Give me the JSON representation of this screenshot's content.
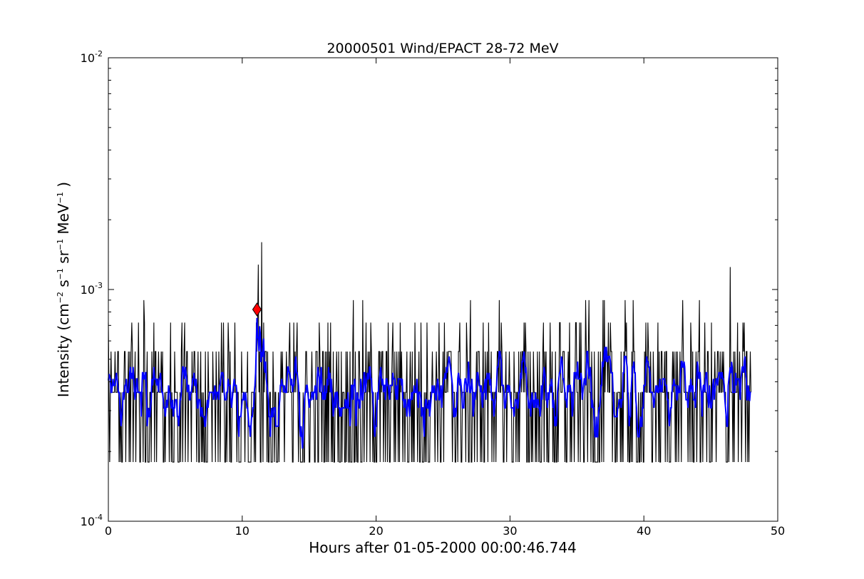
{
  "chart_data": {
    "type": "line",
    "title": "20000501 Wind/EPACT 28-72 MeV",
    "xlabel": "Hours after 01-05-2000 00:00:46.744",
    "ylabel": "Intensity (cm⁻² s⁻¹ sr⁻¹ MeV⁻¹)",
    "ylabel_parts": {
      "prefix": "Intensity (cm",
      "e1": "−2",
      "s": " s",
      "e2": "−1",
      "sr": " sr",
      "e3": "−1",
      "mev": " MeV",
      "e4": "−1",
      "suffix": " )"
    },
    "xlim": [
      0,
      50
    ],
    "ylim": [
      0.0001,
      0.01
    ],
    "yscale": "log",
    "grid": false,
    "x_ticks": [
      "0",
      "10",
      "20",
      "30",
      "40",
      "50"
    ],
    "y_ticks": [
      {
        "base": "10",
        "exp": "-4",
        "value": 0.0001
      },
      {
        "base": "10",
        "exp": "-3",
        "value": 0.001
      },
      {
        "base": "10",
        "exp": "-2",
        "value": 0.01
      }
    ],
    "series": [
      {
        "color": "#000000",
        "description": "raw intensity, step-like levels between ~1.8e-4 and ~1.6e-3"
      },
      {
        "color": "#0000ff",
        "description": "smoothed intensity"
      }
    ],
    "levels": [
      0.00018,
      0.00036,
      0.00054,
      0.00072,
      0.0009
    ],
    "spikes": [
      {
        "x": 11.2,
        "y": 0.00128
      },
      {
        "x": 11.45,
        "y": 0.0016
      },
      {
        "x": 46.45,
        "y": 0.00125
      }
    ],
    "marker": {
      "x": 11.1,
      "y": 0.00082,
      "color": "#ff0000",
      "shape": "diamond"
    },
    "x_end": 48.0
  }
}
